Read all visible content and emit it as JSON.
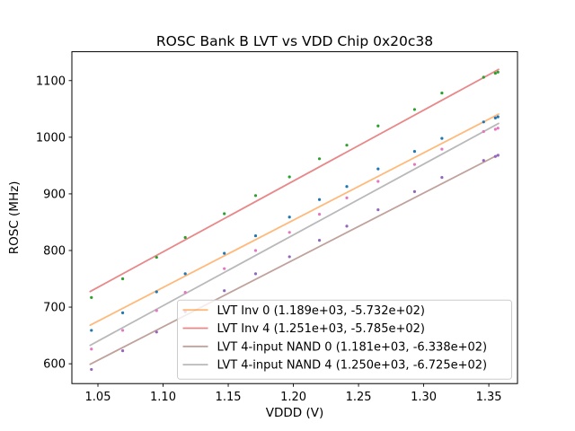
{
  "figure": {
    "window_title": "ROSC Bank B LVT vs VDD Chip 0x20c38"
  },
  "chart_data": {
    "type": "scatter",
    "title": "ROSC Bank B LVT vs VDD Chip 0x20c38",
    "xlabel": "VDDD (V)",
    "ylabel": "ROSC (MHz)",
    "xlim": [
      1.03,
      1.372
    ],
    "ylim": [
      565,
      1151
    ],
    "xticks": [
      "1.05",
      "1.10",
      "1.15",
      "1.20",
      "1.25",
      "1.30",
      "1.35"
    ],
    "yticks": [
      600,
      700,
      800,
      900,
      1000,
      1100
    ],
    "grid": false,
    "legend_position": "lower right",
    "fit_line_alpha": 0.55,
    "fit_x_range": [
      1.044,
      1.3575
    ],
    "voltages": [
      1.045,
      1.069,
      1.095,
      1.117,
      1.147,
      1.171,
      1.197,
      1.22,
      1.241,
      1.265,
      1.293,
      1.314,
      1.346,
      1.355,
      1.357
    ],
    "series": [
      {
        "name": "LVT Inv 0",
        "legend_label": "LVT Inv 0 (1.189e+03, -5.732e+02)",
        "marker_color": "#1f77b4",
        "line_color": "#ff7f0e",
        "fit_slope": 1189,
        "fit_intercept": -573.2,
        "rosc_mhz": [
          659,
          690,
          727,
          759,
          795,
          826,
          859,
          890,
          913,
          944,
          975,
          998,
          1027,
          1034,
          1036
        ]
      },
      {
        "name": "LVT Inv 4",
        "legend_label": "LVT Inv 4 (1.251e+03, -5.785e+02)",
        "marker_color": "#2ca02c",
        "line_color": "#d62728",
        "fit_slope": 1251,
        "fit_intercept": -578.5,
        "rosc_mhz": [
          717,
          750,
          788,
          823,
          865,
          897,
          930,
          962,
          986,
          1020,
          1049,
          1078,
          1106,
          1113,
          1115
        ]
      },
      {
        "name": "LVT 4-input NAND 0",
        "legend_label": "LVT 4-input NAND 0 (1.181e+03, -6.338e+02)",
        "marker_color": "#9467bd",
        "line_color": "#8c564b",
        "fit_slope": 1181,
        "fit_intercept": -633.8,
        "rosc_mhz": [
          590,
          623,
          656,
          692,
          729,
          759,
          789,
          818,
          843,
          872,
          904,
          929,
          959,
          966,
          968
        ]
      },
      {
        "name": "LVT 4-input NAND 4",
        "legend_label": "LVT 4-input NAND 4 (1.250e+03, -6.725e+02)",
        "marker_color": "#e377c2",
        "line_color": "#7f7f7f",
        "fit_slope": 1250,
        "fit_intercept": -672.5,
        "rosc_mhz": [
          626,
          659,
          694,
          726,
          768,
          800,
          832,
          864,
          893,
          922,
          952,
          979,
          1010,
          1014,
          1016
        ]
      }
    ]
  }
}
